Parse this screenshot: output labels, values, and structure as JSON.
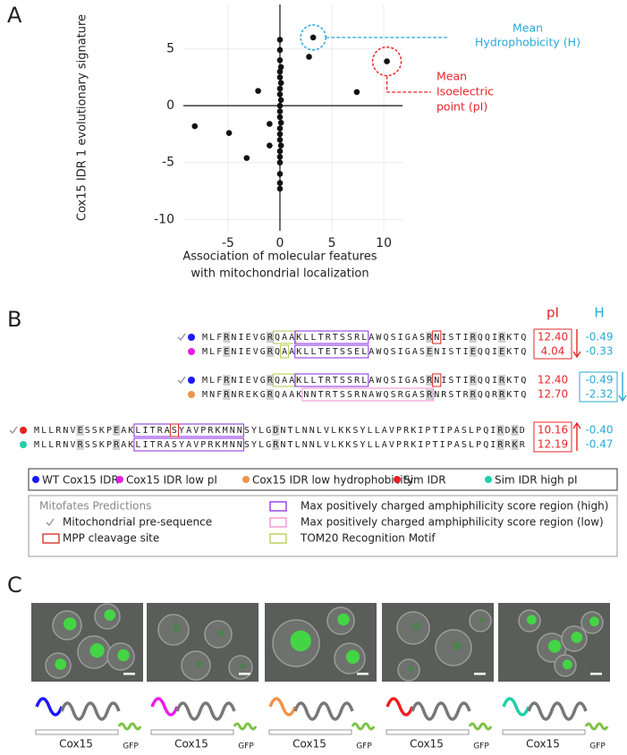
{
  "panel_labels": [
    "A",
    "B",
    "C"
  ],
  "chart_data": {
    "type": "scatter",
    "ylabel": "Cox15 IDR 1 evolutionary signature",
    "xlabel": [
      "Association of molecular features",
      "with mitochondrial localization"
    ],
    "x": [
      3.2,
      10.3,
      2.8,
      7.4,
      -2.1,
      -8.2,
      -4.9,
      -1.0,
      -1.0,
      -3.2,
      0,
      0,
      0,
      0.1,
      0,
      0,
      0.1,
      0,
      0,
      0.1,
      0,
      0,
      0,
      0.1,
      0,
      0,
      0,
      0.1,
      0,
      0,
      0,
      0,
      0,
      0
    ],
    "y": [
      6.0,
      3.9,
      4.3,
      1.2,
      1.3,
      -1.8,
      -2.4,
      -1.6,
      -3.5,
      -4.6,
      5.8,
      4.9,
      4.0,
      3.4,
      3.0,
      2.5,
      2.0,
      1.5,
      1.0,
      0.5,
      0,
      -0.5,
      -1.0,
      -1.5,
      -2.0,
      -2.5,
      -3.0,
      -3.5,
      -4.0,
      -4.5,
      -5.0,
      -6.0,
      -6.8,
      -7.3
    ],
    "xlim": [
      -9.3,
      11.8
    ],
    "ylim": [
      -11,
      8.9
    ],
    "xticks": [
      -5,
      0,
      5,
      10
    ],
    "yticks": [
      5,
      0,
      -5,
      -10
    ],
    "grid": true,
    "color": "#111111",
    "annotations": [
      {
        "lines": [
          "Mean",
          "Hydrophobicity (H)"
        ],
        "color": "#29a9d6"
      },
      {
        "lines": [
          "Mean",
          "Isoelectric",
          "point (pI)"
        ],
        "color": "#e8262b"
      }
    ]
  },
  "sequences": {
    "headers": {
      "pi": "pI",
      "h": "H"
    },
    "groups": [
      {
        "rows": [
          {
            "sequence": "MLFRNIEVGRQAAKLLTRTSSRLAWQSIGASRNISTIRQQIRKTQ",
            "pi": "12.40",
            "h": "-0.49",
            "color": "#1a1aff",
            "presequence": true
          },
          {
            "sequence": "MLFENIEVGRQAAKLLTETSSELAWQSIGASENISTIEQQIEKTQ",
            "pi": "4.04",
            "h": "-0.33",
            "color": "#e81ce8",
            "presequence": false
          }
        ]
      },
      {
        "rows": [
          {
            "sequence": "MLFRNIEVGRQAAKLLTRTSSRLAWQSIGASRNISTIRQQIRKTQ",
            "pi": "12.40",
            "h": "-0.49",
            "color": "#1a1aff",
            "presequence": true
          },
          {
            "sequence": "MNFRNREKGRQAAKNNTRTSSRNAWQSRGASRNRSTRRQQRRKTQ",
            "pi": "12.70",
            "h": "-2.32",
            "color": "#f2924a",
            "presequence": false
          }
        ]
      },
      {
        "rows": [
          {
            "sequence": "MLLRNVESSKPEAKLITRASYAVPRKMNNSYLGDNTLNNLVLKKSYLLAVPRKIPTIPASLPQIRDKD",
            "pi": "10.16",
            "h": "-0.40",
            "color": "#ec2020",
            "presequence": true
          },
          {
            "sequence": "MLLRNVRSSKPRAKLITRASYAVPRKMNNSYLGRNTLNNLVLKKSYLLAVPRKIPTIPASLPQIRRKR",
            "pi": "12.19",
            "h": "-0.47",
            "color": "#1fcfa8",
            "presequence": false
          }
        ]
      }
    ]
  },
  "legend": [
    {
      "label": "WT Cox15 IDR",
      "color": "#1a1aff"
    },
    {
      "label": "Cox15 IDR low pI",
      "color": "#e81ce8"
    },
    {
      "label": "Cox15 IDR low hydrophobicity",
      "color": "#f2924a"
    },
    {
      "label": "Sim IDR",
      "color": "#ec2020"
    },
    {
      "label": "Sim IDR high pI",
      "color": "#1fcfa8"
    }
  ],
  "mitofates": {
    "title": "Mitofates Predictions",
    "items": [
      {
        "label": "Mitochondrial pre-sequence",
        "color": "#999999"
      },
      {
        "label": "MPP cleavage site",
        "color": "#d9261c"
      },
      {
        "label": "Max positively charged amphiphilicity score region (high)",
        "color": "#8a2be2"
      },
      {
        "label": "Max positively charged amphiphilicity score region (low)",
        "color": "#f08cd0"
      },
      {
        "label": "TOM20 Recognition Motif",
        "color": "#b7c94a"
      }
    ]
  },
  "constructs": [
    {
      "color": "#1a1aff",
      "protein": "Cox15",
      "tag": "GFP"
    },
    {
      "color": "#e81ce8",
      "protein": "Cox15",
      "tag": "GFP"
    },
    {
      "color": "#f2924a",
      "protein": "Cox15",
      "tag": "GFP"
    },
    {
      "color": "#ec2020",
      "protein": "Cox15",
      "tag": "GFP"
    },
    {
      "color": "#1fcfa8",
      "protein": "Cox15",
      "tag": "GFP"
    }
  ]
}
